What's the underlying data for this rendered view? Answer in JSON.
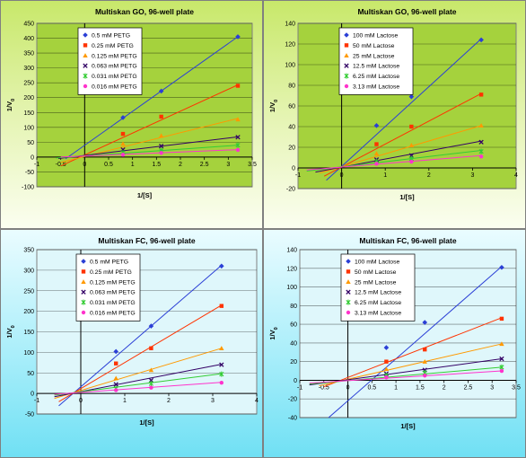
{
  "colors": {
    "series": [
      "#2b3fd6",
      "#ff3300",
      "#ff9900",
      "#330066",
      "#33cc33",
      "#ff33cc"
    ],
    "plot_go": "#a5d23d",
    "plot_fc": "#dff7fb"
  },
  "chart_data": [
    {
      "type": "scatter",
      "title": "Multiskan GO, 96-well plate",
      "xlabel": "1/[S]",
      "ylabel": "1/V0",
      "xlim": [
        -1,
        3.5
      ],
      "ylim": [
        -100,
        450
      ],
      "xticks": [
        "-1",
        "-0.5",
        "0",
        "0.5",
        "1",
        "1.5",
        "2",
        "2.5",
        "3",
        "3.5"
      ],
      "yticks": [
        "-100",
        "-50",
        "0",
        "50",
        "100",
        "150",
        "200",
        "250",
        "300",
        "350",
        "400",
        "450"
      ],
      "legend_position": "top-left",
      "grid": true,
      "series": [
        {
          "name": "0.5 mM PETG",
          "marker": "diamond",
          "x": [
            0.8,
            1.6,
            3.2
          ],
          "y": [
            133,
            222,
            405
          ],
          "fit": [
            [
              -0.4,
              -6
            ],
            [
              3.2,
              405
            ]
          ]
        },
        {
          "name": "0.25 mM PETG",
          "marker": "square",
          "x": [
            0.8,
            1.6,
            3.2
          ],
          "y": [
            78,
            136,
            240
          ],
          "fit": [
            [
              -0.5,
              -30
            ],
            [
              3.2,
              243
            ]
          ]
        },
        {
          "name": "0.125 mM PETG",
          "marker": "triangle",
          "x": [
            0.8,
            1.6,
            3.2
          ],
          "y": [
            45,
            72,
            127
          ],
          "fit": [
            [
              -0.5,
              -18
            ],
            [
              3.2,
              130
            ]
          ]
        },
        {
          "name": "0.063 mM PETG",
          "marker": "x",
          "x": [
            0.8,
            1.6,
            3.2
          ],
          "y": [
            25,
            37,
            67
          ],
          "fit": [
            [
              -0.55,
              -5
            ],
            [
              3.2,
              68
            ]
          ]
        },
        {
          "name": "0.031 mM PETG",
          "marker": "star",
          "x": [
            0.8,
            1.6,
            3.2
          ],
          "y": [
            15,
            22,
            40
          ],
          "fit": [
            [
              -0.6,
              -3
            ],
            [
              3.2,
              40
            ]
          ]
        },
        {
          "name": "0.016 mM PETG",
          "marker": "circle",
          "x": [
            0.8,
            1.6,
            3.2
          ],
          "y": [
            8,
            14,
            24
          ],
          "fit": [
            [
              -0.5,
              0
            ],
            [
              3.2,
              25
            ]
          ]
        }
      ]
    },
    {
      "type": "scatter",
      "title": "Multiskan GO, 96-well plate",
      "xlabel": "1/[S]",
      "ylabel": "1/V0",
      "xlim": [
        -1,
        4
      ],
      "ylim": [
        -20,
        140
      ],
      "xticks": [
        "-1",
        "0",
        "1",
        "2",
        "3",
        "4"
      ],
      "yticks": [
        "-20",
        "0",
        "20",
        "40",
        "60",
        "80",
        "100",
        "120",
        "140"
      ],
      "legend_position": "top-left",
      "grid": true,
      "series": [
        {
          "name": "100 mM Lactose",
          "marker": "diamond",
          "x": [
            0.8,
            1.6,
            3.2
          ],
          "y": [
            41,
            69,
            124
          ],
          "fit": [
            [
              -0.35,
              -12
            ],
            [
              3.2,
              125
            ]
          ]
        },
        {
          "name": "50 mM Lactose",
          "marker": "square",
          "x": [
            0.8,
            1.6,
            3.2
          ],
          "y": [
            23,
            40,
            71
          ],
          "fit": [
            [
              -0.4,
              -8
            ],
            [
              3.2,
              72
            ]
          ]
        },
        {
          "name": "25 mM Lactose",
          "marker": "triangle",
          "x": [
            0.8,
            1.6,
            3.2
          ],
          "y": [
            14,
            22,
            41
          ],
          "fit": [
            [
              -0.5,
              -5
            ],
            [
              3.2,
              41
            ]
          ]
        },
        {
          "name": "12.5 mM Lactose",
          "marker": "x",
          "x": [
            0.8,
            1.6,
            3.2
          ],
          "y": [
            8,
            12,
            25
          ],
          "fit": [
            [
              -0.6,
              -4
            ],
            [
              3.2,
              26
            ]
          ]
        },
        {
          "name": "6.25 mM Lactose",
          "marker": "star",
          "x": [
            0.8,
            1.6,
            3.2
          ],
          "y": [
            6,
            9,
            16
          ],
          "fit": [
            [
              -0.8,
              -3
            ],
            [
              3.2,
              17
            ]
          ]
        },
        {
          "name": "3.13 mM Lactose",
          "marker": "circle",
          "x": [
            0.8,
            1.6,
            3.2
          ],
          "y": [
            4,
            6,
            11
          ],
          "fit": [
            [
              -0.8,
              -2
            ],
            [
              3.2,
              12
            ]
          ]
        }
      ]
    },
    {
      "type": "scatter",
      "title": "Multiskan FC, 96-well plate",
      "xlabel": "1/[S]",
      "ylabel": "1/V0",
      "xlim": [
        -1,
        4
      ],
      "ylim": [
        -50,
        350
      ],
      "xticks": [
        "-1",
        "0",
        "1",
        "2",
        "3",
        "4"
      ],
      "yticks": [
        "-50",
        "0",
        "50",
        "100",
        "150",
        "200",
        "250",
        "300",
        "350"
      ],
      "legend_position": "top-left",
      "grid": true,
      "series": [
        {
          "name": "0.5 mM PETG",
          "marker": "diamond",
          "x": [
            0.8,
            1.6,
            3.2
          ],
          "y": [
            102,
            164,
            310
          ],
          "fit": [
            [
              -0.5,
              -30
            ],
            [
              3.2,
              312
            ]
          ]
        },
        {
          "name": "0.25 mM PETG",
          "marker": "square",
          "x": [
            0.8,
            1.6,
            3.2
          ],
          "y": [
            73,
            110,
            213
          ],
          "fit": [
            [
              -0.5,
              -20
            ],
            [
              3.2,
              215
            ]
          ]
        },
        {
          "name": "0.125 mM PETG",
          "marker": "triangle",
          "x": [
            0.8,
            1.6,
            3.2
          ],
          "y": [
            37,
            57,
            110
          ],
          "fit": [
            [
              -0.6,
              -12
            ],
            [
              3.2,
              110
            ]
          ]
        },
        {
          "name": "0.063 mM PETG",
          "marker": "x",
          "x": [
            0.8,
            1.6,
            3.2
          ],
          "y": [
            22,
            32,
            70
          ],
          "fit": [
            [
              -0.6,
              -8
            ],
            [
              3.2,
              71
            ]
          ]
        },
        {
          "name": "0.031 mM PETG",
          "marker": "star",
          "x": [
            0.8,
            1.6,
            3.2
          ],
          "y": [
            12,
            24,
            47
          ],
          "fit": [
            [
              -0.6,
              -4
            ],
            [
              3.2,
              48
            ]
          ]
        },
        {
          "name": "0.016 mM PETG",
          "marker": "circle",
          "x": [
            0.8,
            1.6,
            3.2
          ],
          "y": [
            8,
            14,
            26
          ],
          "fit": [
            [
              -0.6,
              -2
            ],
            [
              3.2,
              27
            ]
          ]
        }
      ]
    },
    {
      "type": "scatter",
      "title": "Multiskan FC, 96-well plate",
      "xlabel": "1/[S]",
      "ylabel": "1/V0",
      "xlim": [
        -1,
        3.5
      ],
      "ylim": [
        -40,
        140
      ],
      "xticks": [
        "-1",
        "-0.5",
        "0",
        "0.5",
        "1",
        "1.5",
        "2",
        "2.5",
        "3",
        "3.5"
      ],
      "yticks": [
        "-40",
        "-20",
        "0",
        "20",
        "40",
        "60",
        "80",
        "100",
        "120",
        "140"
      ],
      "legend_position": "top-left",
      "grid": true,
      "series": [
        {
          "name": "100 mM Lactose",
          "marker": "diamond",
          "x": [
            0.8,
            1.6,
            3.2
          ],
          "y": [
            35,
            62,
            121
          ],
          "fit": [
            [
              -0.4,
              -40
            ],
            [
              3.2,
              122
            ]
          ]
        },
        {
          "name": "50 mM Lactose",
          "marker": "square",
          "x": [
            0.8,
            1.6,
            3.2
          ],
          "y": [
            20,
            33,
            66
          ],
          "fit": [
            [
              -0.5,
              -7
            ],
            [
              3.2,
              67
            ]
          ]
        },
        {
          "name": "25 mM Lactose",
          "marker": "triangle",
          "x": [
            0.8,
            1.6,
            3.2
          ],
          "y": [
            12,
            20,
            39
          ],
          "fit": [
            [
              -0.6,
              -6
            ],
            [
              3.2,
              39
            ]
          ]
        },
        {
          "name": "12.5 mM Lactose",
          "marker": "x",
          "x": [
            0.8,
            1.6,
            3.2
          ],
          "y": [
            7,
            11,
            23
          ],
          "fit": [
            [
              -0.8,
              -5
            ],
            [
              3.2,
              23
            ]
          ]
        },
        {
          "name": "6.25 mM Lactose",
          "marker": "star",
          "x": [
            0.8,
            1.6,
            3.2
          ],
          "y": [
            5,
            8,
            14
          ],
          "fit": [
            [
              -0.8,
              -4
            ],
            [
              3.2,
              14
            ]
          ]
        },
        {
          "name": "3.13 mM Lactose",
          "marker": "circle",
          "x": [
            0.8,
            1.6,
            3.2
          ],
          "y": [
            3,
            5,
            10
          ],
          "fit": [
            [
              -0.8,
              -3
            ],
            [
              3.2,
              10
            ]
          ]
        }
      ]
    }
  ]
}
